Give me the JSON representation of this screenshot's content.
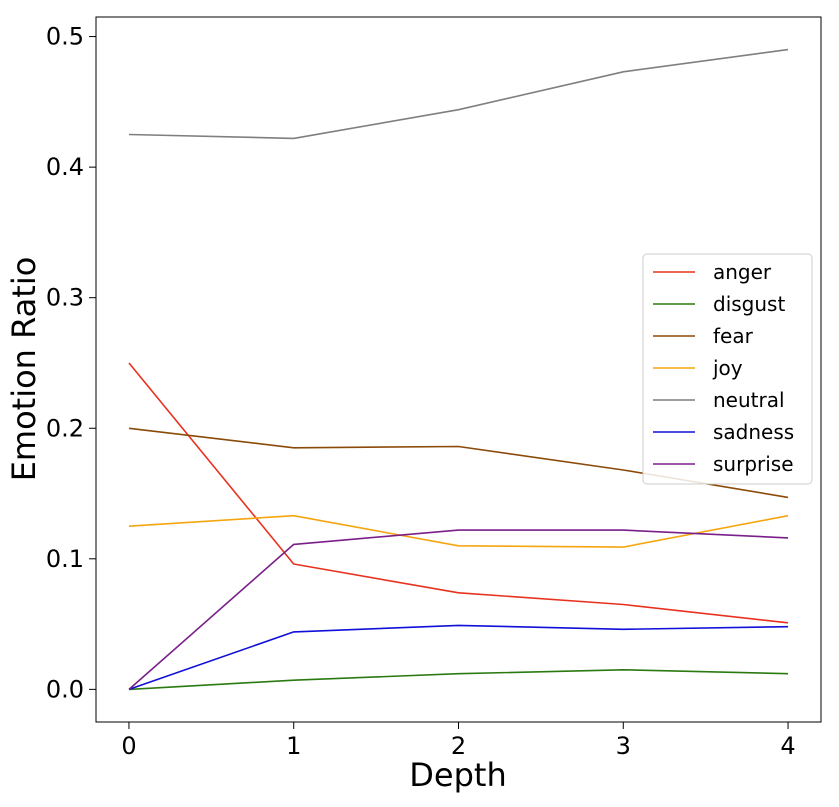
{
  "chart_data": {
    "type": "line",
    "title": "",
    "xlabel": "Depth",
    "ylabel": "Emotion Ratio",
    "x": [
      0,
      1,
      2,
      3,
      4
    ],
    "xlim": [
      -0.2,
      4.2
    ],
    "ylim": [
      -0.025,
      0.515
    ],
    "xticks": [
      0,
      1,
      2,
      3,
      4
    ],
    "xtick_labels": [
      "0",
      "1",
      "2",
      "3",
      "4"
    ],
    "yticks": [
      0.0,
      0.1,
      0.2,
      0.3,
      0.4,
      0.5
    ],
    "ytick_labels": [
      "0.0",
      "0.1",
      "0.2",
      "0.3",
      "0.4",
      "0.5"
    ],
    "grid": false,
    "legend_position": "center-right",
    "series": [
      {
        "name": "anger",
        "color": "#e8321f",
        "values": [
          0.25,
          0.096,
          0.074,
          0.065,
          0.051
        ]
      },
      {
        "name": "disgust",
        "color": "#2a7a10",
        "values": [
          0.0,
          0.007,
          0.012,
          0.015,
          0.012
        ]
      },
      {
        "name": "fear",
        "color": "#8b4a08",
        "values": [
          0.2,
          0.185,
          0.186,
          0.168,
          0.147
        ]
      },
      {
        "name": "joy",
        "color": "#f5a50f",
        "values": [
          0.125,
          0.133,
          0.11,
          0.109,
          0.133
        ]
      },
      {
        "name": "neutral",
        "color": "#7f7f7f",
        "values": [
          0.425,
          0.422,
          0.444,
          0.473,
          0.49
        ]
      },
      {
        "name": "sadness",
        "color": "#1010d8",
        "values": [
          0.0,
          0.044,
          0.049,
          0.046,
          0.048
        ]
      },
      {
        "name": "surprise",
        "color": "#7a1f8a",
        "values": [
          0.0,
          0.111,
          0.122,
          0.122,
          0.116
        ]
      }
    ]
  }
}
